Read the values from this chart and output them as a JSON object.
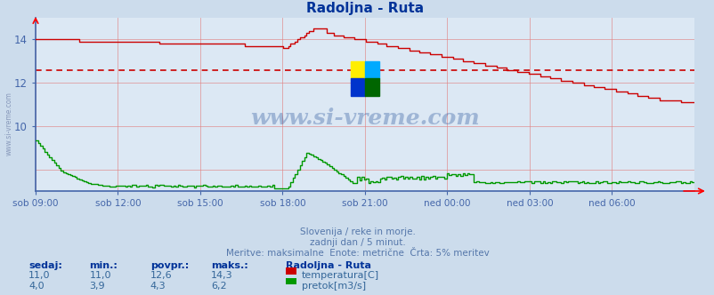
{
  "title": "Radoljna - Ruta",
  "bg_color": "#ccdcec",
  "plot_bg_color": "#dce8f4",
  "grid_color": "#e08080",
  "x_labels": [
    "sob 09:00",
    "sob 12:00",
    "sob 15:00",
    "sob 18:00",
    "sob 21:00",
    "ned 00:00",
    "ned 03:00",
    "ned 06:00"
  ],
  "ylim": [
    7.0,
    15.0
  ],
  "yticks": [
    10,
    12,
    14
  ],
  "temp_color": "#cc0000",
  "flow_color": "#009900",
  "avg_line_color": "#cc0000",
  "avg_line_value": 12.6,
  "subtitle1": "Slovenija / reke in morje.",
  "subtitle2": "zadnji dan / 5 minut.",
  "subtitle3": "Meritve: maksimalne  Enote: metrične  Črta: 5% meritev",
  "watermark": "www.si-vreme.com",
  "side_label": "www.si-vreme.com",
  "legend_title": "Radoljna - Ruta",
  "legend_temp_label": "temperatura[C]",
  "legend_flow_label": "pretok[m3/s]",
  "stats_headers": [
    "sedaj:",
    "min.:",
    "povpr.:",
    "maks.:"
  ],
  "stats_temp": [
    "11,0",
    "11,0",
    "12,6",
    "14,3"
  ],
  "stats_flow": [
    "4,0",
    "3,9",
    "4,3",
    "6,2"
  ],
  "axis_color": "#4466aa",
  "text_color": "#4466aa",
  "title_color": "#003399"
}
